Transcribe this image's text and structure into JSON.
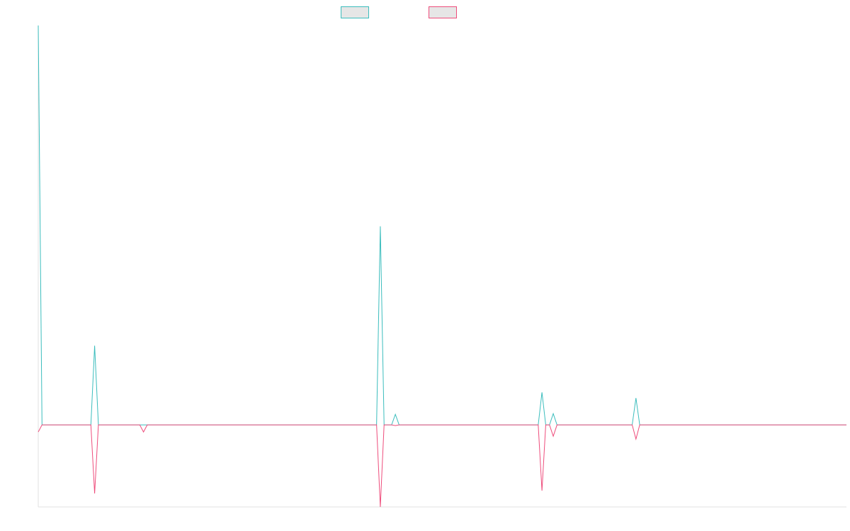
{
  "chart_data": {
    "type": "line",
    "title": "",
    "xlabel": "",
    "ylabel": "",
    "grid": false,
    "legend_position": "top-center",
    "ylim": [
      -116,
      565
    ],
    "n_points": 216,
    "colors": {
      "series_1": "#3bbdbd",
      "series_2": "#ee4d7c"
    },
    "series": [
      {
        "color": "#3bbdbd",
        "points": [
          [
            0,
            565
          ],
          [
            1,
            0
          ],
          [
            14,
            0
          ],
          [
            15,
            112
          ],
          [
            16,
            0
          ],
          [
            90,
            0
          ],
          [
            91,
            281
          ],
          [
            92,
            0
          ],
          [
            94,
            0
          ],
          [
            95,
            15
          ],
          [
            96,
            0
          ],
          [
            133,
            0
          ],
          [
            134,
            46
          ],
          [
            135,
            0
          ],
          [
            136,
            0
          ],
          [
            137,
            16
          ],
          [
            138,
            0
          ],
          [
            158,
            0
          ],
          [
            159,
            38
          ],
          [
            160,
            0
          ],
          [
            215,
            0
          ]
        ]
      },
      {
        "color": "#ee4d7c",
        "points": [
          [
            0,
            -10
          ],
          [
            1,
            0
          ],
          [
            14,
            0
          ],
          [
            15,
            -97
          ],
          [
            16,
            0
          ],
          [
            27,
            0
          ],
          [
            28,
            -10
          ],
          [
            29,
            0
          ],
          [
            90,
            0
          ],
          [
            91,
            -116
          ],
          [
            92,
            0
          ],
          [
            94,
            0
          ],
          [
            95,
            -1
          ],
          [
            96,
            0
          ],
          [
            133,
            0
          ],
          [
            134,
            -93
          ],
          [
            135,
            0
          ],
          [
            136,
            0
          ],
          [
            137,
            -16
          ],
          [
            138,
            0
          ],
          [
            158,
            0
          ],
          [
            159,
            -20
          ],
          [
            160,
            0
          ],
          [
            215,
            0
          ]
        ]
      }
    ]
  }
}
